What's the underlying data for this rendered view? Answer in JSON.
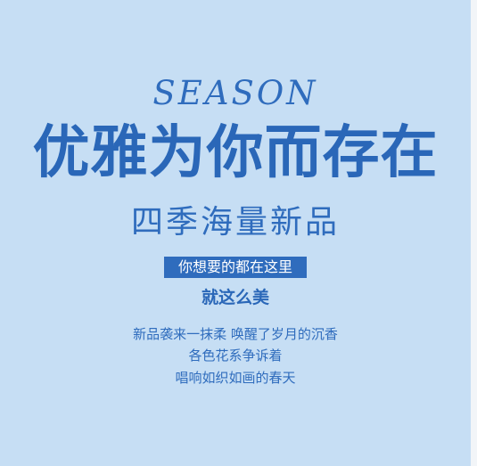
{
  "poster": {
    "season": "SEASON",
    "headline": "优雅为你而存在",
    "subhead": "四季海量新品",
    "tag": "你想要的都在这里",
    "emphasis": "就这么美",
    "lines": [
      "新品袭来一抹柔 唤醒了岁月的沉香",
      "各色花系争诉着",
      "唱响如织如画的春天"
    ]
  },
  "colors": {
    "background": "#c6def4",
    "accent": "#2f6cbd",
    "headline": "#2a67b8",
    "tag_text": "#ffffff"
  }
}
